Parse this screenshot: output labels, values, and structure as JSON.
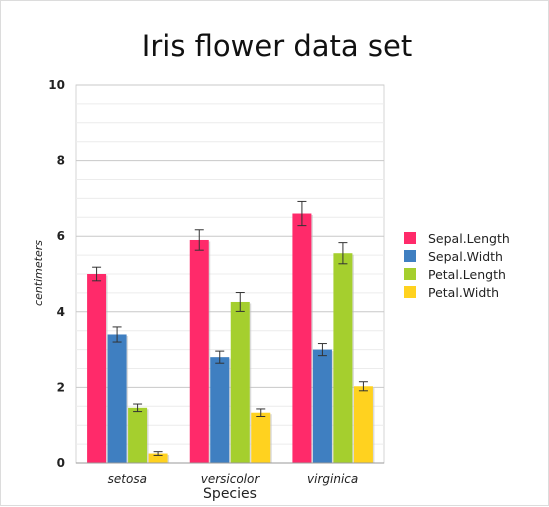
{
  "chart_data": {
    "type": "bar",
    "title": "Iris flower data set",
    "xlabel": "Species",
    "ylabel": "centimeters",
    "categories": [
      "setosa",
      "versicolor",
      "virginica"
    ],
    "ylim": [
      0,
      10
    ],
    "yticks": [
      0,
      2,
      4,
      6,
      8,
      10
    ],
    "grid": true,
    "legend_position": "right",
    "series": [
      {
        "name": "Sepal.Length",
        "color": "#ff2a6a",
        "values": [
          5.0,
          5.9,
          6.6
        ],
        "errors": [
          0.18,
          0.27,
          0.32
        ]
      },
      {
        "name": "Sepal.Width",
        "color": "#3f7fc1",
        "values": [
          3.4,
          2.8,
          3.0
        ],
        "errors": [
          0.2,
          0.16,
          0.16
        ]
      },
      {
        "name": "Petal.Length",
        "color": "#a5cf2e",
        "values": [
          1.46,
          4.26,
          5.55
        ],
        "errors": [
          0.1,
          0.25,
          0.28
        ]
      },
      {
        "name": "Petal.Width",
        "color": "#ffd21f",
        "values": [
          0.25,
          1.33,
          2.03
        ],
        "errors": [
          0.05,
          0.1,
          0.12
        ]
      }
    ]
  }
}
